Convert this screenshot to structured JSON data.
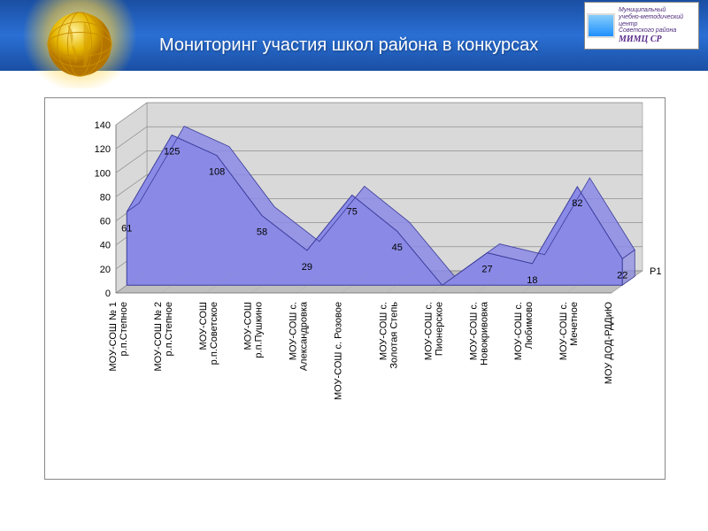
{
  "header": {
    "title": "Мониторинг участия школ района в конкурсах",
    "logo": {
      "line1": "Муниципальный",
      "line2": "учебно-методический центр",
      "line3": "Советского района",
      "brand": "МИМЦ СР"
    }
  },
  "chart": {
    "type": "area-3d",
    "series_name": "Р1",
    "ylim": [
      0,
      140
    ],
    "ytick_step": 20,
    "yticks": [
      0,
      20,
      40,
      60,
      80,
      100,
      120,
      140
    ],
    "background_color": "#ffffff",
    "wall_color": "#d9d9d9",
    "floor_color": "#bfbfbf",
    "grid_color": "#808080",
    "border_color": "#888888",
    "area_fill": "#8a8ae6",
    "area_stroke": "#3a3a9a",
    "label_fontsize": 11,
    "axis_fontsize": 11,
    "categories": [
      "МОУ-СОШ № 1 р.п.Степное",
      "МОУ-СОШ № 2 р.п.Степное",
      "МОУ-СОШ р.п.Советское",
      "МОУ-СОШ р.п.Пушкино",
      "МОУ-СОШ с. Александровка",
      "МОУ-СОШ с. Розовое",
      "МОУ-СОШ с. Золотая Степь",
      "МОУ-СОШ с. Пионерское",
      "МОУ-СОШ с. Новокривовка",
      "МОУ-СОШ с. Любимово",
      "МОУ-СОШ с. Мечетное",
      "МОУ ДОД-РДДиЮ"
    ],
    "values": [
      61,
      125,
      108,
      58,
      29,
      75,
      45,
      0,
      27,
      18,
      82,
      22
    ]
  }
}
